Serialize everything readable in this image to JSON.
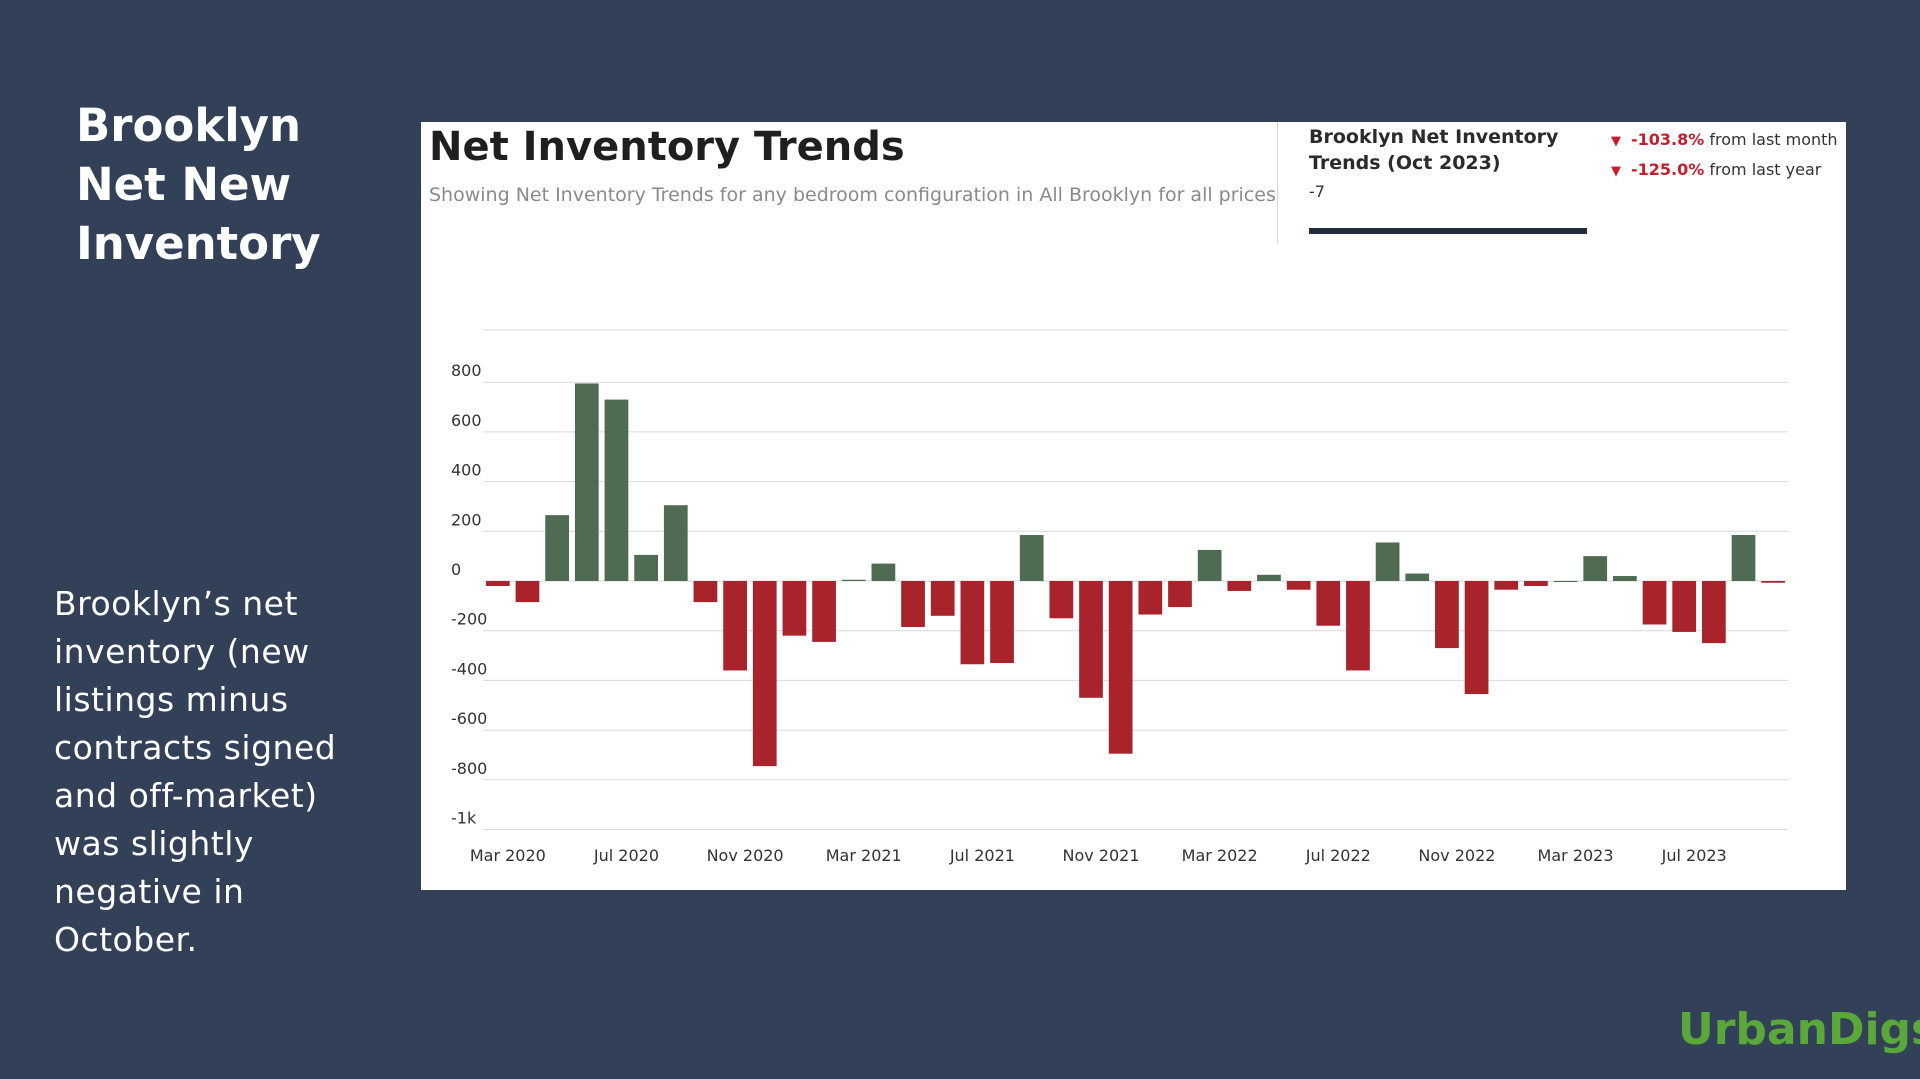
{
  "slide": {
    "title": "Brooklyn Net New Inventory",
    "body": "Brooklyn’s net inventory (new listings minus contracts signed and off-market) was slightly negative in October.",
    "brand": "UrbanDigs"
  },
  "kpi": {
    "title": "Brooklyn Net Inventory Trends  (Oct 2023)",
    "value": "-7",
    "changes": [
      {
        "pct": "-103.8%",
        "label": "from last month"
      },
      {
        "pct": "-125.0%",
        "label": "from last year"
      }
    ]
  },
  "colors": {
    "positive": "#4f6b52",
    "negative": "#a9232b",
    "grid": "#d9d9d9",
    "axis_text": "#333333"
  },
  "chart_data": {
    "type": "bar",
    "title": "Net Inventory Trends",
    "subtitle": "Showing Net Inventory Trends for any bedroom configuration in All Brooklyn for all prices",
    "xlabel": "",
    "ylabel": "",
    "ylim": [
      -1000,
      1000
    ],
    "y_ticks": [
      {
        "value": 800,
        "label": "800"
      },
      {
        "value": 600,
        "label": "600"
      },
      {
        "value": 400,
        "label": "400"
      },
      {
        "value": 200,
        "label": "200"
      },
      {
        "value": 0,
        "label": "0"
      },
      {
        "value": -200,
        "label": "-200"
      },
      {
        "value": -400,
        "label": "-400"
      },
      {
        "value": -600,
        "label": "-600"
      },
      {
        "value": -800,
        "label": "-800"
      },
      {
        "value": -1000,
        "label": "-1k"
      }
    ],
    "x_tick_labels": [
      {
        "index": 0,
        "label": "Mar 2020"
      },
      {
        "index": 4,
        "label": "Jul 2020"
      },
      {
        "index": 8,
        "label": "Nov 2020"
      },
      {
        "index": 12,
        "label": "Mar 2021"
      },
      {
        "index": 16,
        "label": "Jul 2021"
      },
      {
        "index": 20,
        "label": "Nov 2021"
      },
      {
        "index": 24,
        "label": "Mar 2022"
      },
      {
        "index": 28,
        "label": "Jul 2022"
      },
      {
        "index": 32,
        "label": "Nov 2022"
      },
      {
        "index": 36,
        "label": "Mar 2023"
      },
      {
        "index": 40,
        "label": "Jul 2023"
      }
    ],
    "categories": [
      "Mar 2020",
      "Apr 2020",
      "May 2020",
      "Jun 2020",
      "Jul 2020",
      "Aug 2020",
      "Sep 2020",
      "Oct 2020",
      "Nov 2020",
      "Dec 2020",
      "Jan 2021",
      "Feb 2021",
      "Mar 2021",
      "Apr 2021",
      "May 2021",
      "Jun 2021",
      "Jul 2021",
      "Aug 2021",
      "Sep 2021",
      "Oct 2021",
      "Nov 2021",
      "Dec 2021",
      "Jan 2022",
      "Feb 2022",
      "Mar 2022",
      "Apr 2022",
      "May 2022",
      "Jun 2022",
      "Jul 2022",
      "Aug 2022",
      "Sep 2022",
      "Oct 2022",
      "Nov 2022",
      "Dec 2022",
      "Jan 2023",
      "Feb 2023",
      "Mar 2023",
      "Apr 2023",
      "May 2023",
      "Jun 2023",
      "Jul 2023",
      "Aug 2023",
      "Sep 2023",
      "Oct 2023"
    ],
    "values": [
      -20,
      -85,
      265,
      795,
      730,
      105,
      305,
      -85,
      -360,
      -745,
      -220,
      -245,
      5,
      70,
      -185,
      -140,
      -335,
      -330,
      185,
      -150,
      -470,
      -695,
      -135,
      -105,
      125,
      -40,
      25,
      -35,
      -180,
      -360,
      155,
      30,
      -270,
      -455,
      -35,
      -20,
      0,
      100,
      20,
      -175,
      -205,
      -250,
      185,
      -7
    ]
  }
}
